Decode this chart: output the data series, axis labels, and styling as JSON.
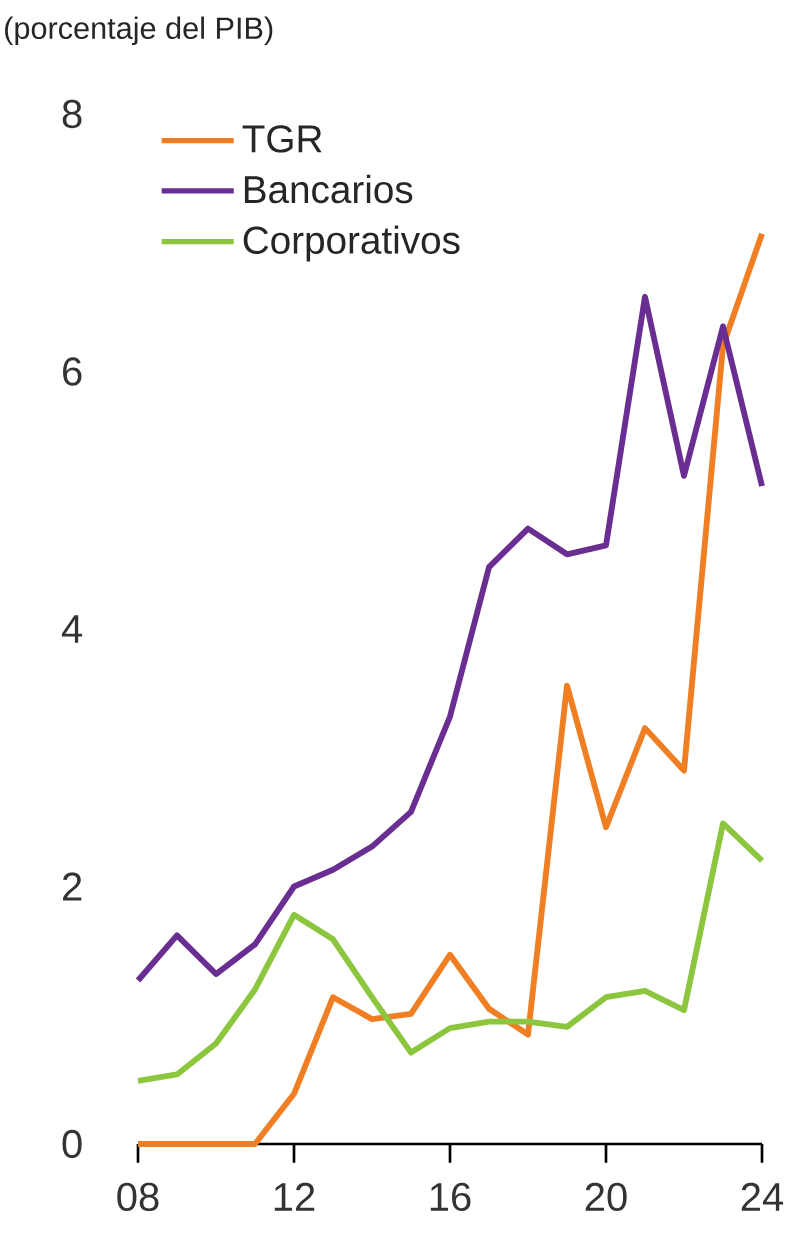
{
  "chart_data": {
    "type": "line",
    "title": "(porcentaje del PIB)",
    "x": [
      8,
      9,
      10,
      11,
      12,
      13,
      14,
      15,
      16,
      17,
      18,
      19,
      20,
      21,
      22,
      23,
      24
    ],
    "series": [
      {
        "name": "TGR",
        "color": "#f07f24",
        "values": [
          0,
          0,
          0,
          0,
          0.39,
          1.14,
          0.97,
          1.01,
          1.47,
          1.05,
          0.85,
          3.56,
          2.46,
          3.23,
          2.9,
          6.2,
          7.07
        ]
      },
      {
        "name": "Bancarios",
        "color": "#6a2d91",
        "values": [
          1.27,
          1.62,
          1.32,
          1.55,
          2.0,
          2.13,
          2.31,
          2.58,
          3.32,
          4.48,
          4.78,
          4.58,
          4.65,
          6.58,
          5.19,
          6.35,
          5.11
        ]
      },
      {
        "name": "Corporativos",
        "color": "#8cc63f",
        "values": [
          0.49,
          0.54,
          0.78,
          1.2,
          1.78,
          1.59,
          1.14,
          0.71,
          0.9,
          0.95,
          0.95,
          0.91,
          1.14,
          1.19,
          1.04,
          2.49,
          2.2
        ]
      }
    ],
    "xlim": [
      8,
      24
    ],
    "xticks": [
      {
        "value": 8,
        "label": "08"
      },
      12,
      16,
      20,
      24
    ],
    "ylim": [
      0,
      8
    ],
    "yticks": [
      0,
      2,
      4,
      6,
      8
    ],
    "legend": "top left",
    "grid": false,
    "marker": "none",
    "line_style": "solid"
  }
}
